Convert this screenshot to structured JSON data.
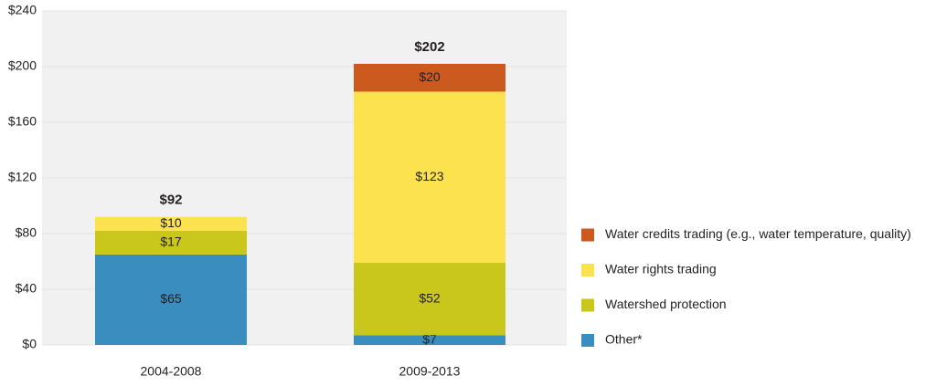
{
  "chart_data": {
    "type": "stacked_bar",
    "categories": [
      "2004-2008",
      "2009-2013"
    ],
    "series": [
      {
        "name": "Other*",
        "color": "#3a8dbf",
        "values": [
          65,
          7
        ],
        "value_labels": [
          "$65",
          "$7"
        ]
      },
      {
        "name": "Watershed protection",
        "color": "#c9c71b",
        "values": [
          17,
          52
        ],
        "value_labels": [
          "$17",
          "$52"
        ]
      },
      {
        "name": "Water rights trading",
        "color": "#fde24f",
        "values": [
          10,
          123
        ],
        "value_labels": [
          "$10",
          "$123"
        ]
      },
      {
        "name": "Water credits trading (e.g., water temperature, quality)",
        "color": "#cc5a1f",
        "values": [
          null,
          20
        ],
        "value_labels": [
          null,
          "$20"
        ]
      }
    ],
    "totals": [
      92,
      202
    ],
    "total_labels": [
      "$92",
      "$202"
    ],
    "ylim": [
      0,
      240
    ],
    "yticks": [
      {
        "value": 0,
        "label": "$0"
      },
      {
        "value": 40,
        "label": "$40"
      },
      {
        "value": 80,
        "label": "$80"
      },
      {
        "value": 120,
        "label": "$120"
      },
      {
        "value": 160,
        "label": "$160"
      },
      {
        "value": 200,
        "label": "$200"
      },
      {
        "value": 240,
        "label": "$240"
      }
    ],
    "grid": true,
    "legend": "right"
  }
}
